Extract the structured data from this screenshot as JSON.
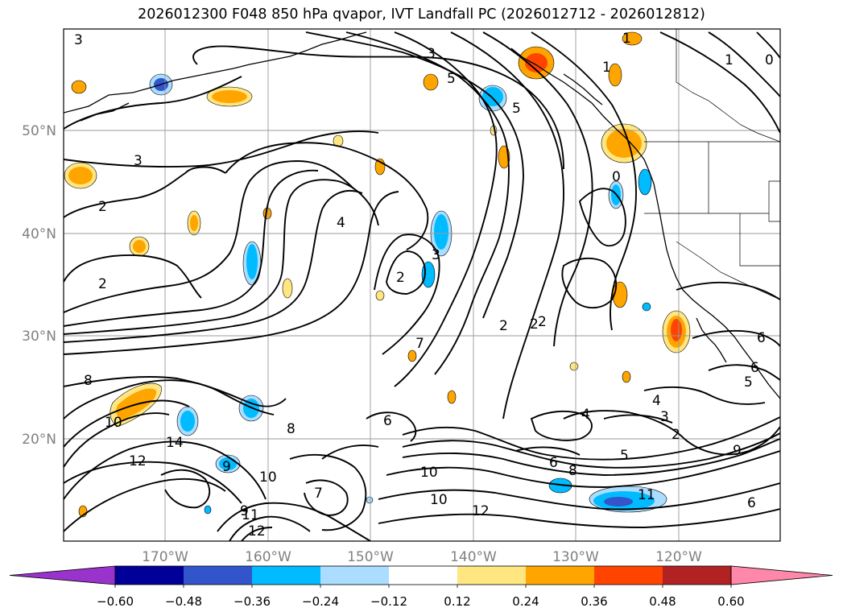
{
  "title": "2026012300 F048 850 hPa qvapor, IVT Landfall PC (2026012712 - 2026012812)",
  "lon_labels": [
    "170°W",
    "160°W",
    "150°W",
    "140°W",
    "130°W",
    "120°W"
  ],
  "lat_labels": [
    "50°N",
    "40°N",
    "30°N",
    "20°N"
  ],
  "contour_labels": [
    "3",
    "3",
    "2",
    "2",
    "4",
    "2",
    "3",
    "5",
    "5",
    "1",
    "1",
    "0",
    "1",
    "0",
    "3",
    "2",
    "2",
    "7",
    "4",
    "3",
    "2",
    "8",
    "10",
    "10",
    "14",
    "12",
    "9",
    "8",
    "11",
    "9",
    "7",
    "12",
    "10",
    "6",
    "6",
    "8",
    "5",
    "9",
    "6",
    "2",
    "4",
    "6",
    "6",
    "5",
    "11",
    "10",
    "12"
  ],
  "colorbar": {
    "tick_labels": [
      "−0.60",
      "−0.48",
      "−0.36",
      "−0.24",
      "−0.12",
      "0.12",
      "0.24",
      "0.36",
      "0.48",
      "0.60"
    ],
    "colors": [
      "#9933cc",
      "#000099",
      "#3355cc",
      "#00bbff",
      "#aaddff",
      "#ffffff",
      "#ffe680",
      "#ffa500",
      "#ff4400",
      "#b22222",
      "#ff88aa"
    ]
  }
}
